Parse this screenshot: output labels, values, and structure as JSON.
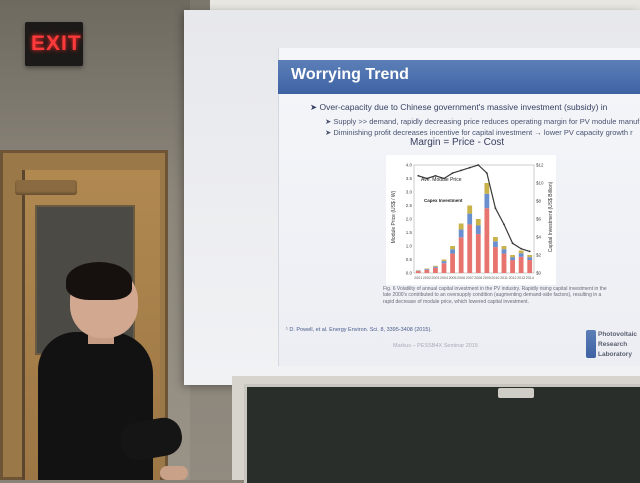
{
  "exit_sign": {
    "label": "EXIT"
  },
  "slide": {
    "title": "Worrying Trend",
    "bullets": [
      "Over-capacity due to Chinese government's massive investment (subsidy) in",
      "Supply >> demand, rapidly decreasing price reduces operating margin for PV module manuf",
      "Diminishing profit decreases incentive for capital investment → lower PV capacity growth r"
    ],
    "equation": "Margin = Price - Cost",
    "reference": "¹ D. Powell, et al. Energy Environ. Sci. 8, 3395-3408 (2015).",
    "footer": "Markus – PESSB4X Seminar 2015",
    "lab_name": [
      "Photovoltaic",
      "Research",
      "Laboratory"
    ]
  },
  "chart_data": {
    "type": "bar",
    "ylabel_left": "Module Price (US$ / W)",
    "ylabel_right": "Capital Investment (US$ Billion)",
    "y_left_ticks": [
      "4.0",
      "3.5",
      "3.0",
      "2.5",
      "2.0",
      "1.5",
      "1.0",
      "0.5",
      "0.0"
    ],
    "y_right_ticks": [
      "$12",
      "$10",
      "$8",
      "$6",
      "$4",
      "$2",
      "$0"
    ],
    "line_label": "Ave. Module Price",
    "legend_title": "Capex Investment",
    "categories": [
      "2001",
      "2002",
      "2003",
      "2004",
      "2005",
      "2006",
      "2007",
      "2008",
      "2009",
      "2010",
      "2011",
      "2012",
      "2013",
      "2014"
    ],
    "investment_values": [
      0.3,
      0.5,
      0.8,
      1.5,
      3.0,
      5.5,
      7.5,
      6.0,
      10.0,
      4.0,
      3.0,
      2.0,
      2.5,
      2.0
    ],
    "price_values": [
      3.6,
      3.5,
      3.6,
      3.5,
      3.7,
      3.8,
      3.9,
      4.0,
      3.7,
      2.4,
      1.8,
      1.1,
      0.9,
      0.8
    ],
    "ylim_left": [
      0,
      4.0
    ],
    "ylim_right": [
      0,
      12
    ],
    "colors": {
      "bar": "#e8746f",
      "bar_top": "#c9b24a",
      "bar_alt": "#6a8fcf",
      "line": "#3a3a3a"
    }
  },
  "figure_caption": "Fig. 6  Volatility of annual capital investment in the PV industry. Rapidly rising capital investment in the late 2000's contributed to an oversupply condition (augmenting demand-side factors), resulting in a rapid decrease of module price, which lowered capital investment."
}
